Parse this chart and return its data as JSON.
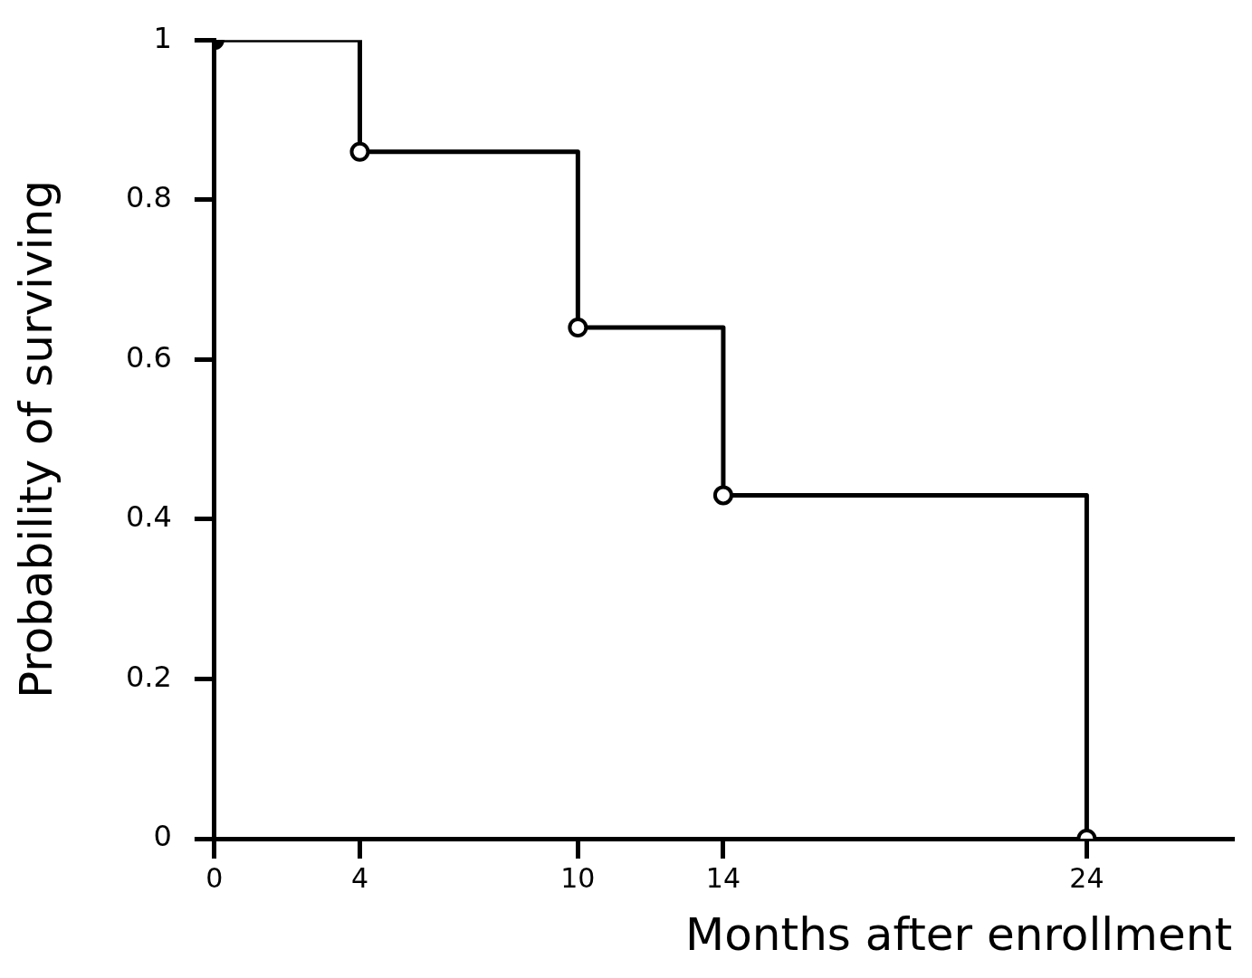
{
  "chart_data": {
    "type": "step",
    "xlabel": "Months after enrollment",
    "ylabel": "Probability of surviving",
    "x": [
      0,
      4,
      10,
      14,
      24
    ],
    "series": [
      {
        "color": "#000000",
        "values": [
          1,
          0.86,
          0.64,
          0.43,
          0
        ]
      }
    ],
    "xlim": [
      0,
      28
    ],
    "xticks": [
      0,
      4,
      10,
      14,
      24
    ],
    "ylim": [
      0,
      1
    ],
    "yticks": [
      0,
      0.2,
      0.4,
      0.6,
      0.8,
      1
    ],
    "grid": false,
    "legend": false,
    "marker": "circle",
    "line_style": "solid"
  }
}
